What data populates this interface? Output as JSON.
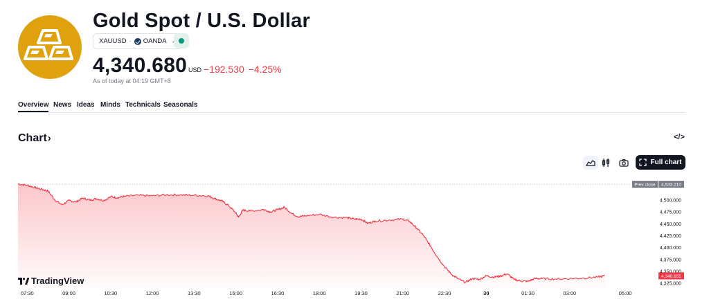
{
  "header": {
    "title": "Gold Spot / U.S. Dollar",
    "symbol": "XAUUSD",
    "exchange": "OANDA",
    "price": "4,340.680",
    "currency": "USD",
    "change": "−192.530",
    "change_percent": "−4.25%",
    "as_of": "As of today at 04:19 GMT+8",
    "market_status_color": "#089981",
    "logo_color": "#E0A10F"
  },
  "tabs": [
    {
      "label": "Overview",
      "active": true
    },
    {
      "label": "News"
    },
    {
      "label": "Ideas"
    },
    {
      "label": "Minds"
    },
    {
      "label": "Technicals"
    },
    {
      "label": "Seasonals"
    }
  ],
  "chart_section": {
    "heading": "Chart",
    "heading_icon": "chevron-right-icon",
    "embed_icon": "code-icon",
    "controls": [
      "area-chart-icon",
      "candles-icon",
      "camera-icon"
    ],
    "full_chart_label": "Full chart",
    "brand": "TradingView"
  },
  "chart_data": {
    "type": "area",
    "line_color": "#f23645",
    "x_tick_labels": [
      "07:30",
      "09:00",
      "10:30",
      "12:00",
      "13:30",
      "15:00",
      "16:30",
      "18:00",
      "19:30",
      "21:00",
      "22:30",
      "30",
      "01:30",
      "03:00",
      "05:00"
    ],
    "y_tick_labels": [
      "4,500.000",
      "4,475.000",
      "4,450.000",
      "4,425.000",
      "4,400.000",
      "4,375.000",
      "4,350.000",
      "4,325.000"
    ],
    "ylim": [
      4315,
      4545
    ],
    "xlim_hours": [
      7.17,
      29.17
    ],
    "prev_close": {
      "label": "Prev close",
      "value": "4,533.210"
    },
    "last_value": "4,340.655",
    "x": [
      7.17,
      7.5,
      7.75,
      8.0,
      8.25,
      8.5,
      8.75,
      9.0,
      9.25,
      9.5,
      9.75,
      10.0,
      10.25,
      10.5,
      10.75,
      11.0,
      11.5,
      12.0,
      12.5,
      13.0,
      13.5,
      14.0,
      14.25,
      14.5,
      14.75,
      15.0,
      15.1,
      15.25,
      15.5,
      16.0,
      16.25,
      16.5,
      16.75,
      17.0,
      17.25,
      17.5,
      18.0,
      18.5,
      19.0,
      19.25,
      19.5,
      19.75,
      20.0,
      20.5,
      21.0,
      21.25,
      21.5,
      21.75,
      22.0,
      22.25,
      22.5,
      22.75,
      23.0,
      23.25,
      23.5,
      23.75,
      24.0,
      24.25,
      24.5,
      24.75,
      25.0,
      25.25,
      25.5,
      25.75,
      26.0,
      26.5,
      27.0,
      27.5,
      28.0,
      28.25
    ],
    "y": [
      4534,
      4531,
      4527,
      4523,
      4519,
      4500,
      4490,
      4499,
      4496,
      4504,
      4500,
      4503,
      4499,
      4507,
      4505,
      4508,
      4510,
      4509,
      4511,
      4511,
      4510,
      4509,
      4503,
      4498,
      4488,
      4473,
      4464,
      4479,
      4477,
      4480,
      4475,
      4480,
      4485,
      4472,
      4465,
      4467,
      4470,
      4464,
      4463,
      4460,
      4460,
      4451,
      4456,
      4458,
      4460,
      4455,
      4441,
      4425,
      4403,
      4380,
      4360,
      4344,
      4334,
      4327,
      4335,
      4333,
      4341,
      4338,
      4340,
      4345,
      4333,
      4330,
      4329,
      4335,
      4335,
      4334,
      4335,
      4336,
      4338,
      4340.655
    ]
  }
}
